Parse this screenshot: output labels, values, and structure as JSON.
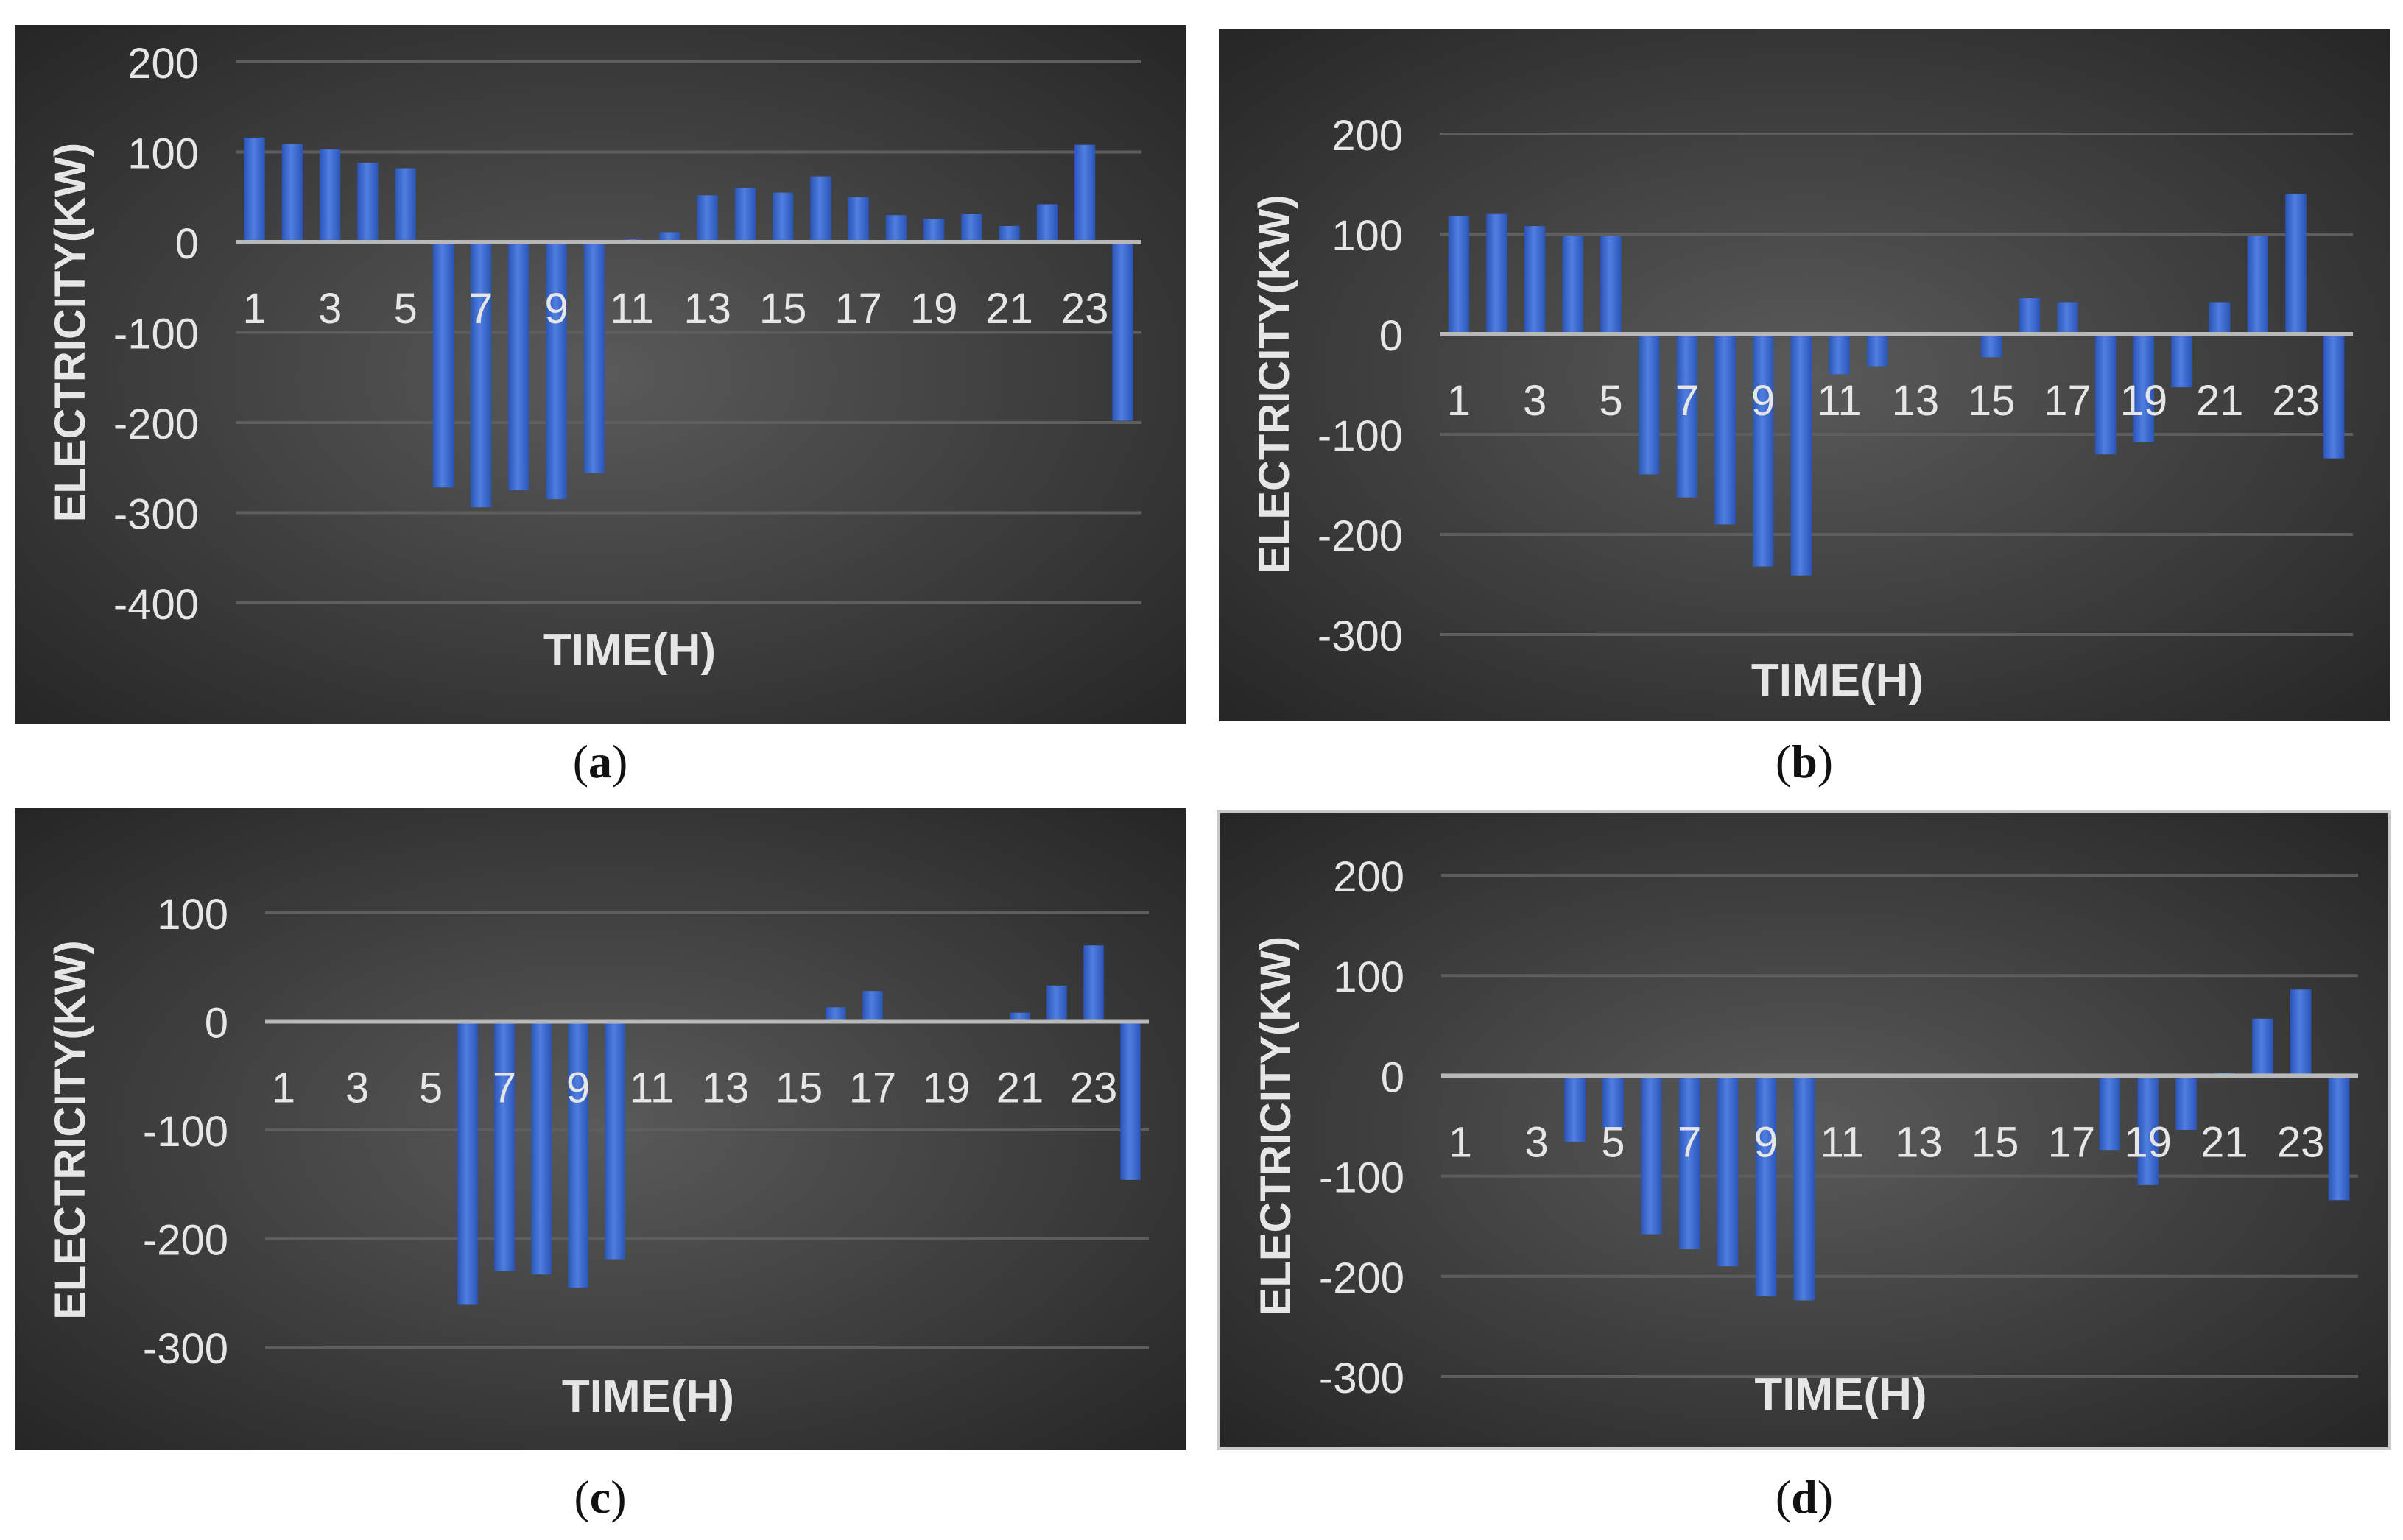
{
  "chart_data": [
    {
      "id": "a",
      "type": "bar",
      "title": "",
      "xlabel": "TIME(H)",
      "ylabel": "ELECTRICITY(KW)",
      "ylim": [
        -400,
        200
      ],
      "yticks": [
        200,
        100,
        0,
        -100,
        -200,
        -300,
        -400
      ],
      "categories": [
        "1",
        "2",
        "3",
        "4",
        "5",
        "6",
        "7",
        "8",
        "9",
        "10",
        "11",
        "12",
        "13",
        "14",
        "15",
        "16",
        "17",
        "18",
        "19",
        "20",
        "21",
        "22",
        "23",
        "24"
      ],
      "tick_labels": [
        "1",
        "3",
        "5",
        "7",
        "9",
        "11",
        "13",
        "15",
        "17",
        "19",
        "21",
        "23"
      ],
      "values": [
        116,
        109,
        103,
        88,
        82,
        -272,
        -294,
        -275,
        -285,
        -256,
        3,
        11,
        52,
        60,
        55,
        73,
        50,
        30,
        26,
        31,
        18,
        42,
        108,
        -198
      ]
    },
    {
      "id": "b",
      "type": "bar",
      "title": "",
      "xlabel": "TIME(H)",
      "ylabel": "ELECTRICITY(KW)",
      "ylim": [
        -300,
        200
      ],
      "yticks": [
        200,
        100,
        0,
        -100,
        -200,
        -300
      ],
      "categories": [
        "1",
        "2",
        "3",
        "4",
        "5",
        "6",
        "7",
        "8",
        "9",
        "10",
        "11",
        "12",
        "13",
        "14",
        "15",
        "16",
        "17",
        "18",
        "19",
        "20",
        "21",
        "22",
        "23",
        "24"
      ],
      "tick_labels": [
        "1",
        "3",
        "5",
        "7",
        "9",
        "11",
        "13",
        "15",
        "17",
        "19",
        "21",
        "23"
      ],
      "values": [
        118,
        120,
        108,
        98,
        98,
        -140,
        -163,
        -190,
        -232,
        -241,
        -40,
        -32,
        0,
        0,
        -23,
        36,
        32,
        -120,
        -108,
        -53,
        32,
        98,
        140,
        -124
      ]
    },
    {
      "id": "c",
      "type": "bar",
      "title": "",
      "xlabel": "TIME(H)",
      "ylabel": "ELECTRICITY(KW)",
      "ylim": [
        -300,
        100
      ],
      "yticks": [
        100,
        0,
        -100,
        -200,
        -300
      ],
      "categories": [
        "1",
        "2",
        "3",
        "4",
        "5",
        "6",
        "7",
        "8",
        "9",
        "10",
        "11",
        "12",
        "13",
        "14",
        "15",
        "16",
        "17",
        "18",
        "19",
        "20",
        "21",
        "22",
        "23",
        "24"
      ],
      "tick_labels": [
        "1",
        "3",
        "5",
        "7",
        "9",
        "11",
        "13",
        "15",
        "17",
        "19",
        "21",
        "23"
      ],
      "values": [
        0,
        0,
        0,
        0,
        0,
        -261,
        -230,
        -233,
        -245,
        -219,
        0,
        0,
        0,
        0,
        0,
        13,
        28,
        0,
        0,
        0,
        8,
        33,
        70,
        -146
      ]
    },
    {
      "id": "d",
      "type": "bar",
      "title": "",
      "xlabel": "TIME(H)",
      "ylabel": "ELECTRICITY(KW)",
      "ylim": [
        -300,
        200
      ],
      "yticks": [
        200,
        100,
        0,
        -100,
        -200,
        -300
      ],
      "categories": [
        "1",
        "2",
        "3",
        "4",
        "5",
        "6",
        "7",
        "8",
        "9",
        "10",
        "11",
        "12",
        "13",
        "14",
        "15",
        "16",
        "17",
        "18",
        "19",
        "20",
        "21",
        "22",
        "23",
        "24"
      ],
      "tick_labels": [
        "1",
        "3",
        "5",
        "7",
        "9",
        "11",
        "13",
        "15",
        "17",
        "19",
        "21",
        "23"
      ],
      "values": [
        0,
        0,
        0,
        -66,
        -52,
        -158,
        -173,
        -190,
        -220,
        -224,
        0,
        0,
        0,
        0,
        0,
        0,
        0,
        -74,
        -109,
        -54,
        3,
        57,
        86,
        -124
      ]
    }
  ],
  "captions": {
    "a": "a",
    "b": "b",
    "c": "c",
    "d": "d"
  },
  "colors": {
    "bar_top": "#4f7fe0",
    "bar_bottom": "#2a55b8",
    "background_center": "#5a5a5a",
    "background_edge": "#262626",
    "grid": "#5e5e5e",
    "zero_line": "#b8b8b8",
    "text": "#e6e6e6"
  }
}
